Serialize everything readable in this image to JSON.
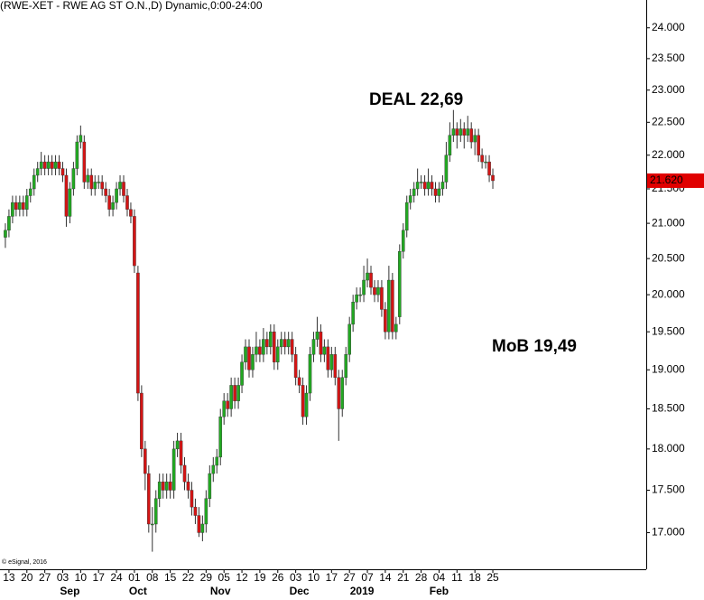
{
  "chart_data": {
    "type": "candlestick",
    "title": "(RWE-XET - RWE AG ST O.N.,D) Dynamic,0:00-24:00",
    "copyright": "© eSignal, 2016",
    "log_scale": true,
    "ylim": [
      16.58,
      24.46
    ],
    "xlim": [
      -1.5,
      178.8
    ],
    "up_color": "#22a822",
    "down_color": "#d41414",
    "wick_color": "#333333",
    "yticks": [
      {
        "value": 17,
        "label": "17.000"
      },
      {
        "value": 17.5,
        "label": "17.500"
      },
      {
        "value": 18,
        "label": "18.000"
      },
      {
        "value": 18.5,
        "label": "18.500"
      },
      {
        "value": 19,
        "label": "19.000"
      },
      {
        "value": 19.5,
        "label": "19.500"
      },
      {
        "value": 20,
        "label": "20.000"
      },
      {
        "value": 20.5,
        "label": "20.500"
      },
      {
        "value": 21,
        "label": "21.000"
      },
      {
        "value": 21.5,
        "label": "21.500"
      },
      {
        "value": 22,
        "label": "22.000"
      },
      {
        "value": 22.5,
        "label": "22.500"
      },
      {
        "value": 23,
        "label": "23.000"
      },
      {
        "value": 23.5,
        "label": "23.500"
      },
      {
        "value": 24,
        "label": "24.000"
      }
    ],
    "xticks": [
      {
        "value": 1,
        "label": "13"
      },
      {
        "value": 6,
        "label": "20"
      },
      {
        "value": 11,
        "label": "27"
      },
      {
        "value": 16,
        "label": "03"
      },
      {
        "value": 21,
        "label": "10"
      },
      {
        "value": 26,
        "label": "17"
      },
      {
        "value": 31,
        "label": "24"
      },
      {
        "value": 36,
        "label": "01"
      },
      {
        "value": 41,
        "label": "08"
      },
      {
        "value": 46,
        "label": "15"
      },
      {
        "value": 51,
        "label": "22"
      },
      {
        "value": 56,
        "label": "29"
      },
      {
        "value": 61,
        "label": "05"
      },
      {
        "value": 66,
        "label": "12"
      },
      {
        "value": 71,
        "label": "19"
      },
      {
        "value": 76,
        "label": "26"
      },
      {
        "value": 81,
        "label": "03"
      },
      {
        "value": 86,
        "label": "10"
      },
      {
        "value": 91,
        "label": "17"
      },
      {
        "value": 96,
        "label": "27"
      },
      {
        "value": 101,
        "label": "07"
      },
      {
        "value": 106,
        "label": "14"
      },
      {
        "value": 111,
        "label": "21"
      },
      {
        "value": 116,
        "label": "28"
      },
      {
        "value": 121,
        "label": "04"
      },
      {
        "value": 126,
        "label": "11"
      },
      {
        "value": 131,
        "label": "18"
      },
      {
        "value": 136,
        "label": "25"
      }
    ],
    "month_labels": [
      {
        "value": 18,
        "label": "Sep"
      },
      {
        "value": 37,
        "label": "Oct"
      },
      {
        "value": 60,
        "label": "Nov"
      },
      {
        "value": 82,
        "label": "Dec"
      },
      {
        "value": 99.5,
        "label": "2019"
      },
      {
        "value": 121,
        "label": "Feb"
      }
    ],
    "last_price": {
      "value": 21.62,
      "label": "21.620",
      "color": "#e00000"
    },
    "annotations": [
      {
        "text": "DEAL 22,69",
        "color": "#000000"
      },
      {
        "text": "MoB 19,49",
        "color": "#e00000"
      }
    ],
    "open": [
      20.8,
      20.9,
      21.1,
      21.3,
      21.2,
      21.3,
      21.2,
      21.4,
      21.5,
      21.7,
      21.8,
      21.9,
      21.8,
      21.9,
      21.8,
      21.9,
      21.8,
      21.7,
      21.1,
      21.5,
      21.8,
      22.2,
      22.2,
      21.6,
      21.7,
      21.5,
      21.6,
      21.6,
      21.5,
      21.4,
      21.2,
      21.3,
      21.5,
      21.6,
      21.4,
      21.2,
      21.1,
      20.3,
      18.7,
      18.0,
      17.7,
      17.1,
      17.1,
      17.4,
      17.6,
      17.5,
      17.6,
      17.5,
      18.0,
      18.1,
      17.8,
      17.6,
      17.5,
      17.3,
      17.2,
      17.0,
      17.1,
      17.4,
      17.7,
      17.8,
      17.9,
      18.4,
      18.6,
      18.5,
      18.8,
      18.6,
      18.8,
      19.1,
      19.3,
      19.0,
      19.2,
      19.3,
      19.2,
      19.4,
      19.3,
      19.5,
      19.1,
      19.3,
      19.4,
      19.3,
      19.4,
      19.2,
      18.9,
      18.8,
      18.4,
      18.7,
      19.2,
      19.4,
      19.5,
      19.2,
      19.3,
      19.0,
      19.2,
      18.9,
      18.5,
      18.9,
      19.2,
      19.6,
      19.9,
      20.0,
      20.0,
      20.2,
      20.3,
      20.1,
      20.0,
      20.1,
      19.8,
      19.5,
      20.2,
      19.5,
      19.7,
      20.6,
      20.9,
      21.3,
      21.4,
      21.5,
      21.6,
      21.6,
      21.5,
      21.6,
      21.5,
      21.4,
      21.5,
      21.6,
      22.0,
      22.3,
      22.4,
      22.3,
      22.4,
      22.3,
      22.4,
      22.2,
      22.3,
      22.0,
      21.9,
      21.9,
      21.7
    ],
    "high": [
      21.0,
      21.2,
      21.4,
      21.4,
      21.4,
      21.4,
      21.5,
      21.6,
      21.8,
      21.9,
      22.05,
      22.0,
      22.0,
      22.0,
      22.0,
      22.0,
      21.9,
      21.8,
      21.6,
      21.9,
      22.3,
      22.45,
      22.3,
      21.8,
      21.8,
      21.7,
      21.7,
      21.7,
      21.6,
      21.5,
      21.4,
      21.6,
      21.7,
      21.7,
      21.5,
      21.3,
      21.2,
      20.4,
      18.8,
      18.1,
      17.8,
      17.3,
      17.5,
      17.7,
      17.7,
      17.7,
      17.7,
      18.1,
      18.2,
      18.2,
      17.9,
      17.7,
      17.6,
      17.4,
      17.3,
      17.2,
      17.5,
      17.8,
      17.9,
      18.0,
      18.5,
      18.7,
      18.7,
      18.9,
      18.9,
      18.9,
      19.2,
      19.4,
      19.4,
      19.3,
      19.5,
      19.4,
      19.55,
      19.5,
      19.6,
      19.6,
      19.4,
      19.5,
      19.5,
      19.5,
      19.5,
      19.3,
      19.0,
      18.9,
      18.8,
      19.3,
      19.5,
      19.7,
      19.6,
      19.4,
      19.4,
      19.3,
      19.3,
      19.0,
      19.0,
      19.3,
      19.7,
      20.0,
      20.1,
      20.1,
      20.4,
      20.5,
      20.4,
      20.2,
      20.2,
      20.2,
      19.9,
      20.4,
      20.3,
      19.7,
      20.7,
      21.0,
      21.4,
      21.5,
      21.6,
      21.8,
      21.7,
      21.7,
      21.8,
      21.7,
      21.6,
      21.6,
      21.7,
      22.2,
      22.5,
      22.69,
      22.5,
      22.55,
      22.5,
      22.6,
      22.5,
      22.4,
      22.4,
      22.1,
      22.0,
      22.0,
      21.8
    ],
    "low": [
      20.65,
      20.8,
      21.0,
      21.1,
      21.1,
      21.1,
      21.1,
      21.3,
      21.4,
      21.6,
      21.7,
      21.7,
      21.7,
      21.7,
      21.7,
      21.7,
      21.6,
      20.95,
      21.0,
      21.4,
      21.7,
      22.1,
      21.5,
      21.5,
      21.4,
      21.4,
      21.5,
      21.4,
      21.3,
      21.1,
      21.1,
      21.2,
      21.4,
      21.3,
      21.1,
      21.0,
      20.3,
      18.6,
      17.9,
      17.5,
      17.0,
      16.78,
      17.0,
      17.3,
      17.4,
      17.4,
      17.4,
      17.4,
      17.9,
      17.7,
      17.5,
      17.4,
      17.2,
      17.1,
      16.95,
      16.9,
      17.0,
      17.3,
      17.6,
      17.7,
      17.8,
      18.3,
      18.4,
      18.4,
      18.5,
      18.5,
      18.7,
      19.0,
      18.9,
      18.9,
      19.1,
      19.1,
      19.1,
      19.2,
      19.2,
      19.0,
      19.0,
      19.2,
      19.2,
      19.2,
      19.1,
      18.8,
      18.7,
      18.3,
      18.3,
      18.6,
      19.1,
      19.3,
      19.1,
      19.1,
      18.9,
      18.9,
      18.8,
      18.1,
      18.4,
      18.8,
      19.1,
      19.5,
      19.8,
      19.9,
      19.9,
      20.1,
      20.0,
      19.9,
      19.9,
      19.7,
      19.4,
      19.4,
      19.4,
      19.4,
      19.6,
      20.5,
      20.8,
      21.2,
      21.3,
      21.4,
      21.5,
      21.4,
      21.4,
      21.4,
      21.3,
      21.3,
      21.4,
      21.5,
      21.9,
      22.2,
      22.1,
      22.2,
      22.1,
      22.2,
      22.1,
      22.0,
      21.9,
      21.8,
      21.8,
      21.6,
      21.5
    ],
    "close": [
      20.9,
      21.1,
      21.3,
      21.2,
      21.3,
      21.2,
      21.4,
      21.5,
      21.7,
      21.8,
      21.9,
      21.8,
      21.9,
      21.8,
      21.9,
      21.8,
      21.7,
      21.1,
      21.5,
      21.8,
      22.2,
      22.3,
      21.6,
      21.7,
      21.5,
      21.6,
      21.6,
      21.5,
      21.4,
      21.2,
      21.3,
      21.5,
      21.6,
      21.4,
      21.2,
      21.1,
      20.4,
      18.7,
      18.0,
      17.7,
      17.1,
      17.1,
      17.4,
      17.6,
      17.5,
      17.6,
      17.5,
      18.0,
      18.1,
      17.8,
      17.6,
      17.5,
      17.3,
      17.2,
      17.0,
      17.1,
      17.4,
      17.7,
      17.8,
      17.9,
      18.4,
      18.6,
      18.5,
      18.8,
      18.6,
      18.8,
      19.1,
      19.3,
      19.0,
      19.2,
      19.3,
      19.2,
      19.4,
      19.3,
      19.5,
      19.1,
      19.3,
      19.4,
      19.3,
      19.4,
      19.2,
      18.9,
      18.8,
      18.4,
      18.7,
      19.2,
      19.4,
      19.5,
      19.2,
      19.3,
      19.0,
      19.2,
      18.9,
      18.5,
      18.9,
      19.2,
      19.6,
      19.9,
      20.0,
      20.0,
      20.2,
      20.3,
      20.1,
      20.0,
      20.1,
      19.8,
      19.5,
      20.2,
      19.5,
      19.6,
      20.6,
      20.9,
      21.3,
      21.4,
      21.5,
      21.6,
      21.6,
      21.5,
      21.6,
      21.5,
      21.4,
      21.5,
      21.6,
      22.0,
      22.3,
      22.4,
      22.3,
      22.4,
      22.3,
      22.4,
      22.2,
      22.3,
      22.0,
      21.9,
      21.9,
      21.7,
      21.62
    ]
  }
}
